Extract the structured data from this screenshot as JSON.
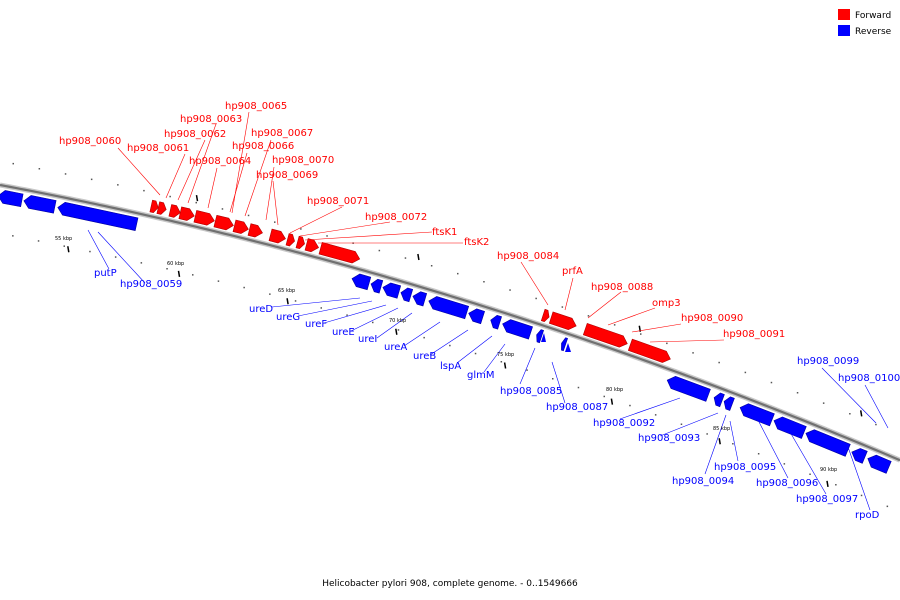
{
  "caption": "Helicobacter pylori 908, complete genome. - 0..1549666",
  "legend": [
    {
      "label": "Forward",
      "color": "#ff0000"
    },
    {
      "label": "Reverse",
      "color": "#0000ff"
    }
  ],
  "colors": {
    "forward": "#ff0000",
    "reverse": "#0000ff",
    "backbone": "#808080"
  },
  "kbp_marks": [
    "55 kbp",
    "60 kbp",
    "65 kbp",
    "70 kbp",
    "75 kbp",
    "80 kbp",
    "85 kbp",
    "90 kbp"
  ],
  "forward_genes": [
    "hp908_0060",
    "hp908_0061",
    "hp908_0062",
    "hp908_0063",
    "hp908_0065",
    "hp908_0064",
    "hp908_0067",
    "hp908_0066",
    "hp908_0070",
    "hp908_0069",
    "hp908_0071",
    "hp908_0072",
    "ftsK1",
    "ftsK2",
    "hp908_0084",
    "prfA",
    "hp908_0088",
    "omp3",
    "hp908_0090",
    "hp908_0091"
  ],
  "reverse_genes": [
    "putP",
    "hp908_0059",
    "ureD",
    "ureG",
    "ureF",
    "ureE",
    "ureI",
    "ureA",
    "ureB",
    "lspA",
    "glmM",
    "hp908_0085",
    "hp908_0087",
    "hp908_0092",
    "hp908_0093",
    "hp908_0094",
    "hp908_0095",
    "hp908_0096",
    "hp908_0097",
    "rpoD",
    "hp908_0099",
    "hp908_0100"
  ]
}
